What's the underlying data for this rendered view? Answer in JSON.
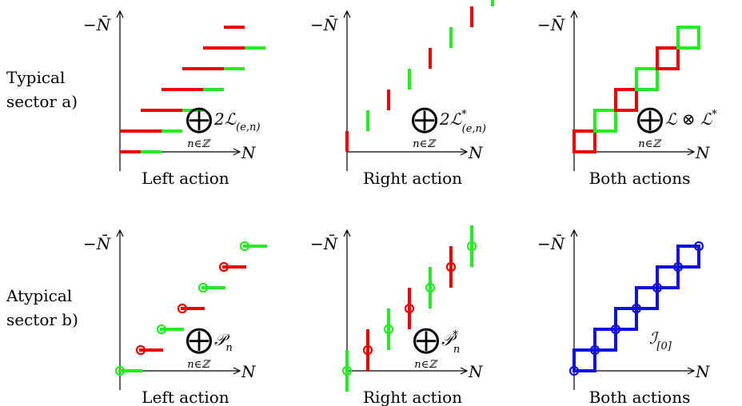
{
  "colors": {
    "red": "#ee0000",
    "green": "#22ee22",
    "blue": "#1010e0",
    "axis": "#000000"
  },
  "row_labels": [
    {
      "line1": "Typical",
      "line2": "sector a)"
    },
    {
      "line1": "Atypical",
      "line2": "sector b)"
    }
  ],
  "axis_labels": {
    "horizontal": "N",
    "vertical": "−N̄"
  },
  "panels": [
    {
      "caption": "Left action",
      "formula_main": "2ℒ",
      "formula_sub": "(e,n)",
      "formula_sup": "",
      "sum_index": "n∈ℤ"
    },
    {
      "caption": "Right action",
      "formula_main": "2ℒ",
      "formula_sub": "(e,n)",
      "formula_sup": "*",
      "sum_index": "n∈ℤ"
    },
    {
      "caption": "Both actions",
      "formula_main": "ℒ ⊗ ℒ",
      "formula_sub": "",
      "formula_sup": "*",
      "sum_index": "n∈ℤ"
    },
    {
      "caption": "Left action",
      "formula_main": "𝒫",
      "formula_sub": "n",
      "formula_sup": "",
      "sum_index": "n∈ℤ"
    },
    {
      "caption": "Right action",
      "formula_main": "𝒫",
      "formula_sub": "n",
      "formula_sup": "*",
      "sum_index": "n∈ℤ"
    },
    {
      "caption": "Both actions",
      "formula_main": "ℐ",
      "formula_sub": "[0]",
      "formula_sup": "",
      "sum_index": ""
    }
  ],
  "sum_symbol": "⨁"
}
